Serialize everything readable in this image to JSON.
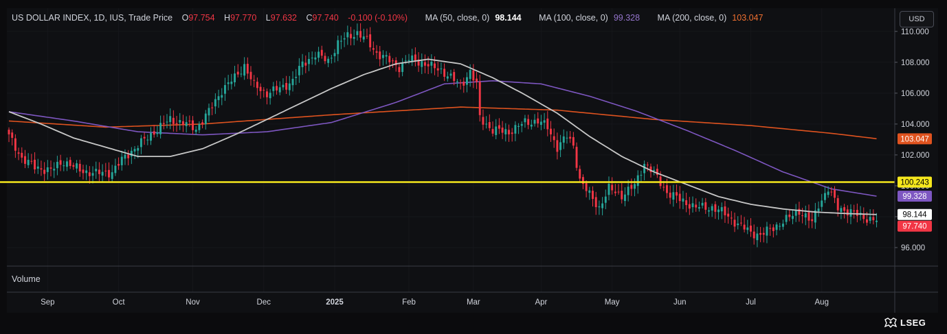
{
  "legend": {
    "title": "US DOLLAR INDEX, 1D, IUS, Trade Price",
    "open_k": "O",
    "open": "97.754",
    "high_k": "H",
    "high": "97.770",
    "low_k": "L",
    "low": "97.632",
    "close_k": "C",
    "close": "97.740",
    "change": "-0.100 (-0.10%)",
    "ma50_label": "MA (50, close, 0)",
    "ma50_value": "98.144",
    "ma100_label": "MA (100, close, 0)",
    "ma100_value": "99.328",
    "ma200_label": "MA (200, close, 0)",
    "ma200_value": "103.047"
  },
  "currency_button": "USD",
  "volume_label": "Volume",
  "brand": "LSEG",
  "colors": {
    "up": "#26a69a",
    "down": "#f23645",
    "ma50": "#c8c8c8",
    "ma100": "#7e57c2",
    "ma200": "#e0531f",
    "hline": "#f6e71d",
    "close_tag": "#f23645"
  },
  "chart_data": {
    "type": "candlestick",
    "title": "US DOLLAR INDEX, 1D, IUS, Trade Price",
    "ylim": [
      94.8,
      111.5
    ],
    "y_ticks": [
      96,
      98,
      100,
      102,
      104,
      106,
      108,
      110
    ],
    "y_tick_labels": [
      "96.000",
      "98.000",
      "100.000",
      "102.000",
      "104.000",
      "106.000",
      "108.000",
      "110.000"
    ],
    "x_months": [
      "Sep",
      "Oct",
      "Nov",
      "Dec",
      "2025",
      "Feb",
      "Mar",
      "Apr",
      "May",
      "Jun",
      "Jul",
      "Aug"
    ],
    "x_month_day_index": [
      12,
      34,
      57,
      79,
      101,
      124,
      144,
      165,
      187,
      208,
      230,
      252
    ],
    "total_days": 274,
    "close_anchors": [
      [
        0,
        103.2
      ],
      [
        4,
        101.8
      ],
      [
        8,
        101.2
      ],
      [
        13,
        101.0
      ],
      [
        17,
        101.6
      ],
      [
        22,
        101.0
      ],
      [
        27,
        100.8
      ],
      [
        32,
        100.9
      ],
      [
        36,
        101.9
      ],
      [
        40,
        102.6
      ],
      [
        45,
        103.5
      ],
      [
        50,
        104.3
      ],
      [
        55,
        104.0
      ],
      [
        58,
        103.7
      ],
      [
        62,
        104.8
      ],
      [
        66,
        106.2
      ],
      [
        70,
        107.0
      ],
      [
        73,
        107.8
      ],
      [
        76,
        106.5
      ],
      [
        80,
        106.0
      ],
      [
        84,
        106.3
      ],
      [
        88,
        106.8
      ],
      [
        91,
        107.9
      ],
      [
        95,
        108.5
      ],
      [
        99,
        108.1
      ],
      [
        102,
        109.2
      ],
      [
        105,
        109.7
      ],
      [
        108,
        109.9
      ],
      [
        111,
        109.4
      ],
      [
        114,
        108.6
      ],
      [
        118,
        108.1
      ],
      [
        121,
        107.7
      ],
      [
        124,
        108.2
      ],
      [
        128,
        108.0
      ],
      [
        131,
        107.7
      ],
      [
        134,
        107.5
      ],
      [
        137,
        107.0
      ],
      [
        140,
        106.5
      ],
      [
        143,
        107.4
      ],
      [
        145,
        106.5
      ],
      [
        146,
        104.4
      ],
      [
        150,
        103.6
      ],
      [
        155,
        103.5
      ],
      [
        160,
        104.1
      ],
      [
        164,
        104.2
      ],
      [
        167,
        103.8
      ],
      [
        170,
        102.5
      ],
      [
        173,
        103.2
      ],
      [
        175,
        102.6
      ],
      [
        177,
        100.4
      ],
      [
        180,
        99.4
      ],
      [
        183,
        98.6
      ],
      [
        186,
        99.8
      ],
      [
        190,
        99.4
      ],
      [
        194,
        100.0
      ],
      [
        197,
        101.5
      ],
      [
        200,
        100.8
      ],
      [
        204,
        99.6
      ],
      [
        208,
        99.1
      ],
      [
        213,
        98.6
      ],
      [
        218,
        98.6
      ],
      [
        222,
        98.2
      ],
      [
        226,
        97.5
      ],
      [
        230,
        97.0
      ],
      [
        233,
        96.8
      ],
      [
        237,
        97.3
      ],
      [
        241,
        97.8
      ],
      [
        245,
        98.4
      ],
      [
        249,
        97.6
      ],
      [
        251,
        98.8
      ],
      [
        254,
        99.8
      ],
      [
        257,
        98.6
      ],
      [
        262,
        98.2
      ],
      [
        266,
        97.9
      ],
      [
        269,
        97.74
      ]
    ],
    "ma50_anchors": [
      [
        0,
        104.8
      ],
      [
        10,
        104.0
      ],
      [
        20,
        103.1
      ],
      [
        30,
        102.5
      ],
      [
        40,
        101.9
      ],
      [
        50,
        101.9
      ],
      [
        60,
        102.4
      ],
      [
        70,
        103.3
      ],
      [
        80,
        104.3
      ],
      [
        90,
        105.3
      ],
      [
        100,
        106.3
      ],
      [
        110,
        107.2
      ],
      [
        120,
        107.9
      ],
      [
        130,
        108.2
      ],
      [
        140,
        107.9
      ],
      [
        150,
        107.0
      ],
      [
        160,
        105.9
      ],
      [
        170,
        104.7
      ],
      [
        180,
        103.2
      ],
      [
        190,
        101.9
      ],
      [
        200,
        100.9
      ],
      [
        210,
        100.1
      ],
      [
        220,
        99.3
      ],
      [
        230,
        98.8
      ],
      [
        240,
        98.5
      ],
      [
        250,
        98.3
      ],
      [
        260,
        98.2
      ],
      [
        269,
        98.14
      ]
    ],
    "ma100_anchors": [
      [
        0,
        104.8
      ],
      [
        20,
        104.2
      ],
      [
        40,
        103.5
      ],
      [
        60,
        103.3
      ],
      [
        80,
        103.5
      ],
      [
        100,
        104.1
      ],
      [
        120,
        105.4
      ],
      [
        135,
        106.6
      ],
      [
        150,
        106.8
      ],
      [
        165,
        106.6
      ],
      [
        180,
        105.8
      ],
      [
        195,
        104.8
      ],
      [
        210,
        103.6
      ],
      [
        225,
        102.3
      ],
      [
        240,
        100.9
      ],
      [
        255,
        99.8
      ],
      [
        269,
        99.33
      ]
    ],
    "ma200_anchors": [
      [
        0,
        104.2
      ],
      [
        30,
        103.8
      ],
      [
        60,
        104.0
      ],
      [
        100,
        104.6
      ],
      [
        140,
        105.1
      ],
      [
        170,
        104.9
      ],
      [
        200,
        104.3
      ],
      [
        230,
        103.9
      ],
      [
        255,
        103.4
      ],
      [
        269,
        103.05
      ]
    ],
    "horizontal_line": 100.243,
    "price_tags": [
      {
        "label": "103.047",
        "value": 103.047,
        "bg": "#e0531f",
        "fg": "#ffffff"
      },
      {
        "label": "100.243",
        "value": 100.243,
        "bg": "#f6e71d",
        "fg": "#000000"
      },
      {
        "label": "99.328",
        "value": 99.328,
        "bg": "#7e57c2",
        "fg": "#ffffff"
      },
      {
        "label": "98.144",
        "value": 98.144,
        "bg": "#ffffff",
        "fg": "#000000"
      },
      {
        "label": "97.740",
        "value": 97.74,
        "bg": "#f23645",
        "fg": "#ffffff"
      }
    ]
  }
}
